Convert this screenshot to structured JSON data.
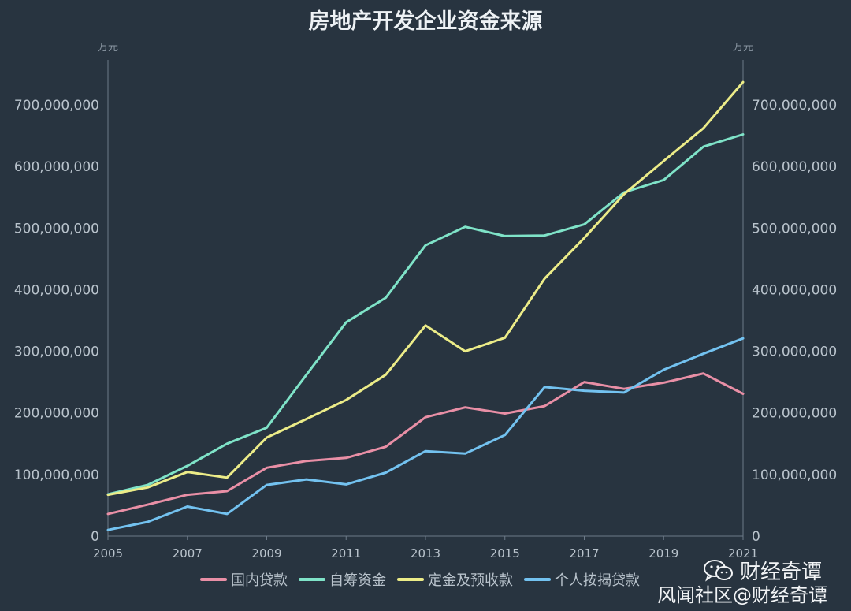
{
  "chart_data": {
    "type": "line",
    "title": "房地产开发企业资金来源",
    "y_unit_left": "万元",
    "y_unit_right": "万元",
    "x": [
      2005,
      2006,
      2007,
      2008,
      2009,
      2010,
      2011,
      2012,
      2013,
      2014,
      2015,
      2016,
      2017,
      2018,
      2019,
      2020,
      2021
    ],
    "x_tick_labels": [
      "2005",
      "2007",
      "2009",
      "2011",
      "2013",
      "2015",
      "2017",
      "2019",
      "2021"
    ],
    "ylim": [
      0,
      700000000
    ],
    "y_tick_labels": [
      "0",
      "100,000,000",
      "200,000,000",
      "300,000,000",
      "400,000,000",
      "500,000,000",
      "600,000,000",
      "700,000,000"
    ],
    "y_ticks": [
      0,
      100000000,
      200000000,
      300000000,
      400000000,
      500000000,
      600000000,
      700000000
    ],
    "grid": false,
    "legend_position": "bottom",
    "series": [
      {
        "name": "国内贷款",
        "color": "#e98fa6",
        "values": [
          36000000,
          51000000,
          67000000,
          73000000,
          111000000,
          122000000,
          127000000,
          145000000,
          193000000,
          209000000,
          199000000,
          211000000,
          250000000,
          239000000,
          249000000,
          264000000,
          231000000
        ]
      },
      {
        "name": "自筹资金",
        "color": "#7fe3c8",
        "values": [
          68000000,
          83000000,
          114000000,
          150000000,
          176000000,
          262000000,
          347000000,
          387000000,
          472000000,
          502000000,
          487000000,
          488000000,
          506000000,
          558000000,
          578000000,
          632000000,
          652000000
        ]
      },
      {
        "name": "定金及预收款",
        "color": "#ecec88",
        "values": [
          67000000,
          79000000,
          104000000,
          95000000,
          160000000,
          190000000,
          221000000,
          262000000,
          342000000,
          300000000,
          322000000,
          418000000,
          484000000,
          555000000,
          609000000,
          662000000,
          737000000
        ]
      },
      {
        "name": "个人按揭贷款",
        "color": "#73c2f0",
        "values": [
          10000000,
          23000000,
          48000000,
          36000000,
          83000000,
          92000000,
          84000000,
          103000000,
          138000000,
          134000000,
          164000000,
          242000000,
          236000000,
          233000000,
          270000000,
          296000000,
          321000000
        ]
      }
    ]
  },
  "watermark": {
    "wechat_account": "财经奇谭",
    "community": "风闻社区@财经奇谭",
    "wechat_icon": "wechat-icon"
  },
  "colors": {
    "background": "#283440",
    "axis": "#6c7a88",
    "text": "#b9c3cc",
    "title": "#eef2f5"
  }
}
